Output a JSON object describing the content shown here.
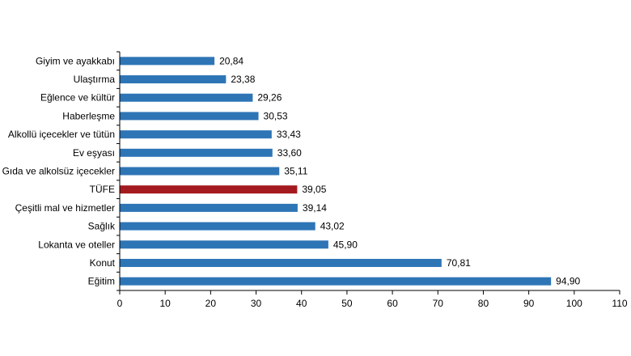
{
  "chart_data": {
    "type": "bar",
    "orientation": "horizontal",
    "categories": [
      "Giyim ve ayakkabı",
      "Ulaştırma",
      "Eğlence ve kültür",
      "Haberleşme",
      "Alkollü içecekler ve tütün",
      "Ev eşyası",
      "Gıda ve alkolsüz içecekler",
      "TÜFE",
      "Çeşitli mal ve hizmetler",
      "Sağlık",
      "Lokanta ve oteller",
      "Konut",
      "Eğitim"
    ],
    "values": [
      20.84,
      23.38,
      29.26,
      30.53,
      33.43,
      33.6,
      35.11,
      39.05,
      39.14,
      43.02,
      45.9,
      70.81,
      94.9
    ],
    "value_labels": [
      "20,84",
      "23,38",
      "29,26",
      "30,53",
      "33,43",
      "33,60",
      "35,11",
      "39,05",
      "39,14",
      "43,02",
      "45,90",
      "70,81",
      "94,90"
    ],
    "xlim": [
      0,
      110
    ],
    "xticks": [
      0,
      10,
      20,
      30,
      40,
      50,
      60,
      70,
      80,
      90,
      100,
      110
    ],
    "grid": false,
    "legend": "none",
    "colors": {
      "bar": "#2e75b6",
      "highlight": "#a31a1f",
      "axis": "#000000"
    },
    "highlight_category": "TÜFE"
  }
}
